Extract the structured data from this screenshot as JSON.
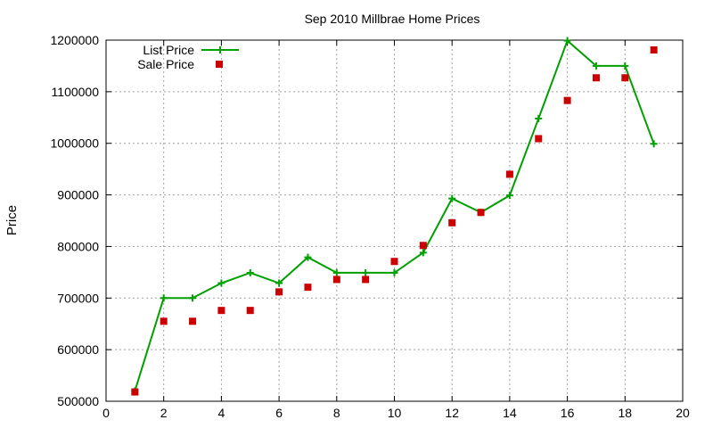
{
  "chart_data": {
    "type": "line",
    "title": "Sep 2010 Millbrae Home Prices",
    "xlabel": "",
    "ylabel": "Price",
    "xlim": [
      0,
      20
    ],
    "ylim": [
      500000,
      1200000
    ],
    "xticks": [
      0,
      2,
      4,
      6,
      8,
      10,
      12,
      14,
      16,
      18,
      20
    ],
    "yticks": [
      500000,
      600000,
      700000,
      800000,
      900000,
      1000000,
      1100000,
      1200000
    ],
    "grid": true,
    "legend_position": "top-left",
    "series": [
      {
        "name": "List Price",
        "style": "line-with-plus-markers",
        "color": "#00a000",
        "x": [
          1,
          2,
          3,
          4,
          5,
          6,
          7,
          8,
          9,
          10,
          11,
          12,
          13,
          14,
          15,
          16,
          17,
          18,
          19
        ],
        "y": [
          520000,
          700000,
          700000,
          729000,
          749000,
          729000,
          779000,
          749000,
          749000,
          749000,
          788000,
          893000,
          866000,
          899000,
          1048000,
          1199000,
          1150000,
          1150000,
          999000
        ]
      },
      {
        "name": "Sale Price",
        "style": "square-markers",
        "color": "#cc0000",
        "x": [
          1,
          2,
          3,
          4,
          5,
          6,
          7,
          8,
          9,
          10,
          11,
          12,
          13,
          14,
          15,
          16,
          17,
          18,
          19
        ],
        "y": [
          518000,
          655000,
          655000,
          676000,
          676000,
          712000,
          721000,
          736000,
          736000,
          771000,
          802000,
          846000,
          866000,
          940000,
          1009000,
          1083000,
          1127000,
          1127000,
          1181000
        ]
      }
    ]
  }
}
